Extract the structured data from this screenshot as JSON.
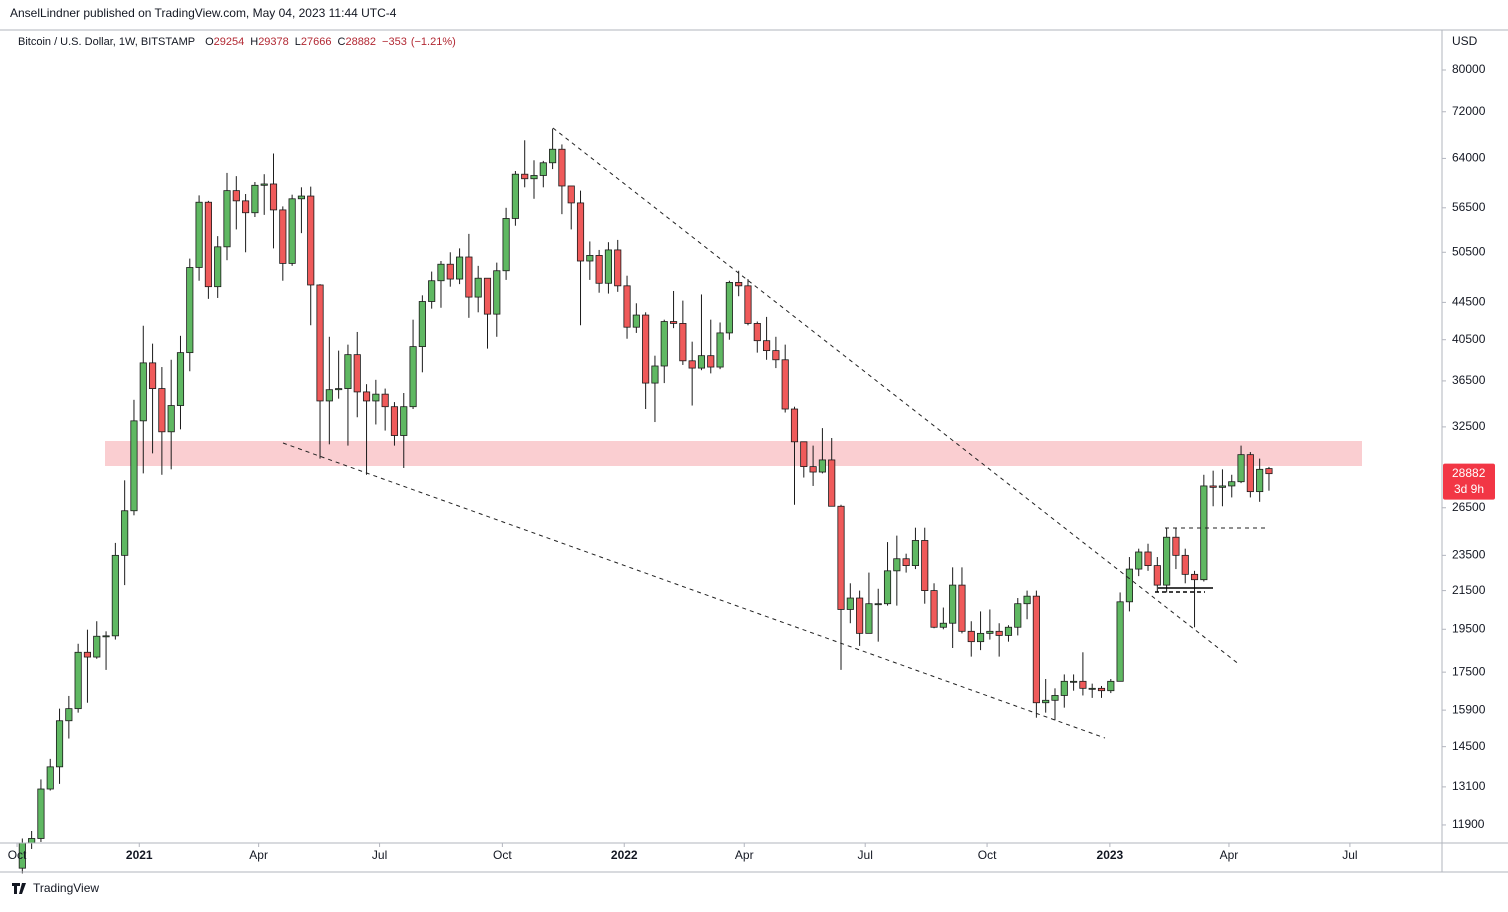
{
  "header": "AnselLindner published on TradingView.com, May 04, 2023 11:44 UTC-4",
  "footer": "TradingView",
  "chart_data": {
    "type": "candlestick",
    "title": "Bitcoin / U.S. Dollar, 1W, BITSTAMP",
    "ohlc_labels": [
      "O",
      "H",
      "L",
      "C"
    ],
    "change": "−353",
    "change_pct": "(−1.21%)",
    "currency": "USD",
    "countdown": "3d 9h",
    "log_scale": true,
    "grid": false,
    "up_color": "#5fb862",
    "down_color": "#ef5a5a",
    "ylim": [
      11370,
      88500
    ],
    "yticks": [
      11900,
      13100,
      14500,
      15900,
      17500,
      19500,
      21500,
      23500,
      26500,
      32500,
      36500,
      40500,
      44500,
      50500,
      56500,
      64000,
      72000,
      80000
    ],
    "xlim": [
      -2.4,
      152.6
    ],
    "xticks": [
      {
        "value": -0.57,
        "label": "Oct"
      },
      {
        "value": 12.57,
        "label": "2021"
      },
      {
        "value": 25.4,
        "label": "Apr"
      },
      {
        "value": 38.4,
        "label": "Jul"
      },
      {
        "value": 51.6,
        "label": "Oct"
      },
      {
        "value": 64.7,
        "label": "2022"
      },
      {
        "value": 77.6,
        "label": "Apr"
      },
      {
        "value": 90.6,
        "label": "Jul"
      },
      {
        "value": 103.7,
        "label": "Oct"
      },
      {
        "value": 116.9,
        "label": "2023"
      },
      {
        "value": 129.7,
        "label": "Apr"
      },
      {
        "value": 142.7,
        "label": "Jul"
      }
    ],
    "ohlc": [
      [
        10670,
        11500,
        10530,
        11370
      ],
      [
        11370,
        11720,
        11200,
        11500
      ],
      [
        11500,
        13350,
        11400,
        13030
      ],
      [
        13030,
        14060,
        12980,
        13780
      ],
      [
        13780,
        15960,
        13200,
        15480
      ],
      [
        15480,
        16480,
        14800,
        15960
      ],
      [
        15960,
        18800,
        15800,
        18400
      ],
      [
        18400,
        19480,
        16200,
        18180
      ],
      [
        18180,
        19900,
        18100,
        19160
      ],
      [
        19160,
        19400,
        17600,
        19180
      ],
      [
        19180,
        24250,
        19000,
        23500
      ],
      [
        23500,
        28400,
        21800,
        26300
      ],
      [
        26300,
        34800,
        26000,
        33000
      ],
      [
        33000,
        41950,
        28900,
        38200
      ],
      [
        38200,
        40100,
        30400,
        35800
      ],
      [
        35800,
        37800,
        28800,
        32100
      ],
      [
        32100,
        38500,
        29200,
        34300
      ],
      [
        34300,
        40900,
        32300,
        39200
      ],
      [
        39200,
        49700,
        37400,
        48600
      ],
      [
        48600,
        58300,
        47000,
        57300
      ],
      [
        57300,
        57500,
        44900,
        46300
      ],
      [
        46300,
        52600,
        45000,
        51200
      ],
      [
        51200,
        61700,
        49500,
        59000
      ],
      [
        59000,
        61200,
        53500,
        57500
      ],
      [
        57500,
        58500,
        50500,
        55800
      ],
      [
        55800,
        60300,
        55200,
        59800
      ],
      [
        59800,
        61500,
        55500,
        60000
      ],
      [
        60000,
        64800,
        51000,
        56200
      ],
      [
        56200,
        56700,
        47000,
        49100
      ],
      [
        49100,
        58400,
        48800,
        57800
      ],
      [
        57800,
        59500,
        53000,
        58200
      ],
      [
        58200,
        59600,
        42000,
        46500
      ],
      [
        46500,
        46600,
        30000,
        34700
      ],
      [
        34700,
        40800,
        31100,
        35700
      ],
      [
        35700,
        39400,
        34900,
        35800
      ],
      [
        35800,
        40000,
        31000,
        39000
      ],
      [
        39000,
        41300,
        33300,
        35500
      ],
      [
        35500,
        36200,
        28800,
        34700
      ],
      [
        34700,
        36600,
        32700,
        35300
      ],
      [
        35300,
        35800,
        32200,
        34200
      ],
      [
        34200,
        34600,
        31000,
        31800
      ],
      [
        31800,
        35400,
        29300,
        34200
      ],
      [
        34200,
        42600,
        34000,
        39800
      ],
      [
        39800,
        45300,
        37300,
        44600
      ],
      [
        44600,
        48100,
        43800,
        47000
      ],
      [
        47000,
        49400,
        43900,
        49000
      ],
      [
        49000,
        50500,
        46300,
        47200
      ],
      [
        47200,
        51000,
        46600,
        49900
      ],
      [
        49900,
        52900,
        42800,
        45100
      ],
      [
        45100,
        48800,
        43400,
        47300
      ],
      [
        47300,
        47300,
        39600,
        43200
      ],
      [
        43200,
        49200,
        40800,
        48200
      ],
      [
        48200,
        56500,
        47100,
        55000
      ],
      [
        55000,
        62000,
        54000,
        61500
      ],
      [
        61500,
        67000,
        59500,
        60800
      ],
      [
        60800,
        63700,
        57800,
        61300
      ],
      [
        61300,
        63600,
        59500,
        63300
      ],
      [
        63300,
        69000,
        62300,
        65500
      ],
      [
        65500,
        66300,
        55600,
        59700
      ],
      [
        59700,
        59700,
        53500,
        57200
      ],
      [
        57200,
        59000,
        42000,
        49400
      ],
      [
        49400,
        51900,
        47100,
        50100
      ],
      [
        50100,
        50800,
        45600,
        46700
      ],
      [
        46700,
        51800,
        45500,
        50800
      ],
      [
        50800,
        52100,
        45700,
        46400
      ],
      [
        46400,
        47600,
        40600,
        41800
      ],
      [
        41800,
        44400,
        41200,
        43100
      ],
      [
        43100,
        43400,
        34000,
        36300
      ],
      [
        36300,
        38900,
        32900,
        37900
      ],
      [
        37900,
        42600,
        36300,
        42400
      ],
      [
        42400,
        45800,
        41700,
        42200
      ],
      [
        42200,
        44700,
        38000,
        38400
      ],
      [
        38400,
        40300,
        34300,
        37700
      ],
      [
        37700,
        45400,
        37500,
        38900
      ],
      [
        38900,
        42600,
        37200,
        37800
      ],
      [
        37800,
        42300,
        37600,
        41200
      ],
      [
        41200,
        47000,
        40500,
        46800
      ],
      [
        46800,
        48200,
        45200,
        46400
      ],
      [
        46400,
        47200,
        42000,
        42200
      ],
      [
        42200,
        42400,
        39200,
        40400
      ],
      [
        40400,
        42900,
        38500,
        39400
      ],
      [
        39400,
        40800,
        37700,
        38500
      ],
      [
        38500,
        40000,
        33700,
        34000
      ],
      [
        34000,
        34200,
        26700,
        31300
      ],
      [
        31300,
        31300,
        28600,
        29400
      ],
      [
        29400,
        31000,
        28000,
        29000
      ],
      [
        29000,
        32400,
        28900,
        29900
      ],
      [
        29900,
        31600,
        26600,
        26600
      ],
      [
        26600,
        26700,
        17600,
        20500
      ],
      [
        20500,
        21900,
        19800,
        21100
      ],
      [
        21100,
        21500,
        18700,
        19300
      ],
      [
        19300,
        22500,
        19300,
        20800
      ],
      [
        20800,
        21600,
        18900,
        20800
      ],
      [
        20800,
        24300,
        20700,
        22600
      ],
      [
        22600,
        24700,
        20700,
        23300
      ],
      [
        23300,
        23600,
        22500,
        22900
      ],
      [
        22900,
        25200,
        22700,
        24400
      ],
      [
        24400,
        25200,
        20800,
        21500
      ],
      [
        21500,
        21900,
        19550,
        19600
      ],
      [
        19600,
        20600,
        19500,
        19800
      ],
      [
        19800,
        22800,
        18600,
        21800
      ],
      [
        21800,
        22800,
        19300,
        19400
      ],
      [
        19400,
        19900,
        18200,
        18900
      ],
      [
        18900,
        20400,
        18500,
        19300
      ],
      [
        19300,
        20500,
        19000,
        19400
      ],
      [
        19400,
        19800,
        18200,
        19200
      ],
      [
        19200,
        19700,
        18900,
        19600
      ],
      [
        19600,
        21100,
        19200,
        20800
      ],
      [
        20800,
        21500,
        20000,
        21200
      ],
      [
        21200,
        21500,
        15600,
        16200
      ],
      [
        16200,
        17200,
        15800,
        16300
      ],
      [
        16300,
        16800,
        15500,
        16500
      ],
      [
        16500,
        17400,
        16000,
        17100
      ],
      [
        17100,
        17400,
        16700,
        17100
      ],
      [
        17100,
        18400,
        16500,
        16800
      ],
      [
        16800,
        17000,
        16400,
        16800
      ],
      [
        16800,
        16900,
        16400,
        16700
      ],
      [
        16700,
        17200,
        16600,
        17100
      ],
      [
        17100,
        21400,
        17100,
        20900
      ],
      [
        20900,
        23400,
        20400,
        22700
      ],
      [
        22700,
        23900,
        22300,
        23700
      ],
      [
        23700,
        24200,
        22600,
        22900
      ],
      [
        22900,
        23400,
        21400,
        21800
      ],
      [
        21800,
        25200,
        21400,
        24600
      ],
      [
        24600,
        25200,
        22700,
        23500
      ],
      [
        23500,
        23900,
        21900,
        22400
      ],
      [
        22400,
        22600,
        19600,
        22100
      ],
      [
        22100,
        28800,
        22000,
        28000
      ],
      [
        28000,
        29100,
        26600,
        27900
      ],
      [
        27900,
        29200,
        26600,
        28000
      ],
      [
        28000,
        28800,
        27200,
        28300
      ],
      [
        28300,
        31000,
        28200,
        30300
      ],
      [
        30300,
        30500,
        27200,
        27600
      ],
      [
        27600,
        30000,
        26900,
        29200
      ],
      [
        29254,
        29378,
        27666,
        28882
      ]
    ]
  }
}
